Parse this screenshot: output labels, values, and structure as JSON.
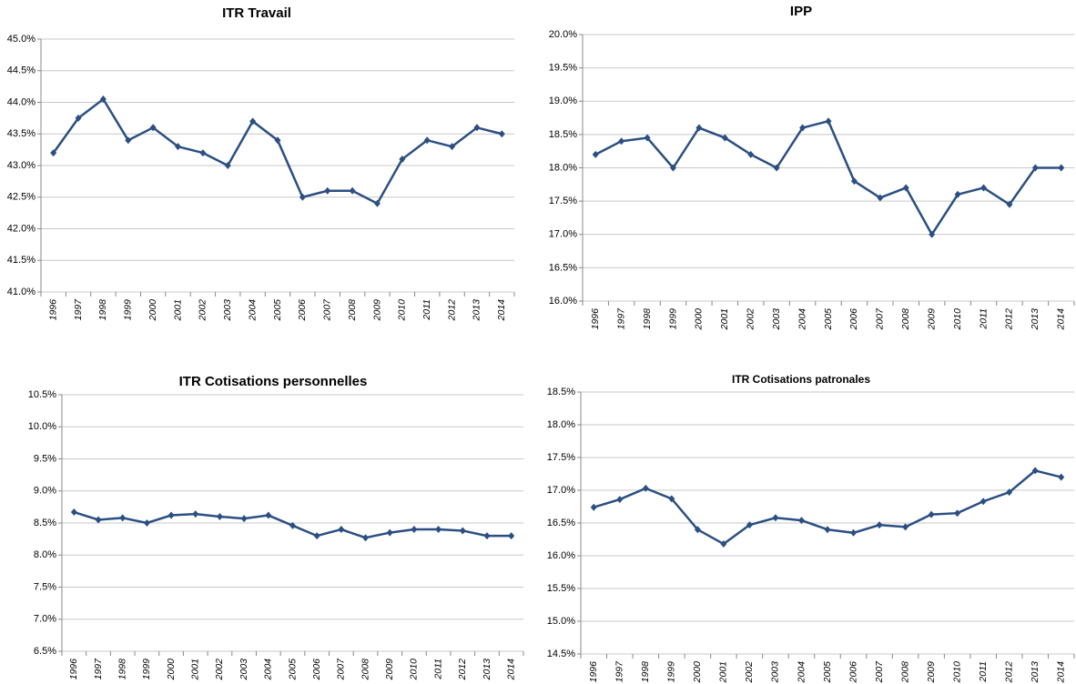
{
  "chart_data": [
    {
      "type": "line",
      "title": "ITR Travail",
      "color": "#2b4f82",
      "grid": true,
      "categories": [
        "1996",
        "1997",
        "1998",
        "1999",
        "2000",
        "2001",
        "2002",
        "2003",
        "2004",
        "2005",
        "2006",
        "2007",
        "2008",
        "2009",
        "2010",
        "2011",
        "2012",
        "2013",
        "2014"
      ],
      "values": [
        43.2,
        43.75,
        44.05,
        43.4,
        43.6,
        43.3,
        43.2,
        43.0,
        43.7,
        43.4,
        42.5,
        42.6,
        42.6,
        42.4,
        43.1,
        43.4,
        43.3,
        43.6,
        43.5
      ],
      "ylim": [
        41,
        45
      ],
      "yticks": [
        {
          "value": 41,
          "label": "41.0%"
        },
        {
          "value": 41.5,
          "label": "41.5%"
        },
        {
          "value": 42,
          "label": "42.0%"
        },
        {
          "value": 42.5,
          "label": "42.5%"
        },
        {
          "value": 43,
          "label": "43.0%"
        },
        {
          "value": 43.5,
          "label": "43.5%"
        },
        {
          "value": 44,
          "label": "44.0%"
        },
        {
          "value": 44.5,
          "label": "44.5%"
        },
        {
          "value": 45,
          "label": "45.0%"
        }
      ]
    },
    {
      "type": "line",
      "title": "IPP",
      "color": "#2b4f82",
      "grid": true,
      "categories": [
        "1996",
        "1997",
        "1998",
        "1999",
        "2000",
        "2001",
        "2002",
        "2003",
        "2004",
        "2005",
        "2006",
        "2007",
        "2008",
        "2009",
        "2010",
        "2011",
        "2012",
        "2013",
        "2014"
      ],
      "values": [
        18.2,
        18.4,
        18.45,
        18.0,
        18.6,
        18.45,
        18.2,
        18.0,
        18.6,
        18.7,
        17.8,
        17.55,
        17.7,
        17.0,
        17.6,
        17.7,
        17.45,
        18.0,
        18.0
      ],
      "ylim": [
        16,
        20
      ],
      "yticks": [
        {
          "value": 16,
          "label": "16.0%"
        },
        {
          "value": 16.5,
          "label": "16.5%"
        },
        {
          "value": 17,
          "label": "17.0%"
        },
        {
          "value": 17.5,
          "label": "17.5%"
        },
        {
          "value": 18,
          "label": "18.0%"
        },
        {
          "value": 18.5,
          "label": "18.5%"
        },
        {
          "value": 19,
          "label": "19.0%"
        },
        {
          "value": 19.5,
          "label": "19.5%"
        },
        {
          "value": 20,
          "label": "20.0%"
        }
      ]
    },
    {
      "type": "line",
      "title": "ITR Cotisations personnelles",
      "color": "#2b4f82",
      "grid": true,
      "categories": [
        "1996",
        "1997",
        "1998",
        "1999",
        "2000",
        "2001",
        "2002",
        "2003",
        "2004",
        "2005",
        "2006",
        "2007",
        "2008",
        "2009",
        "2010",
        "2011",
        "2012",
        "2013",
        "2014"
      ],
      "values": [
        8.67,
        8.55,
        8.58,
        8.5,
        8.62,
        8.64,
        8.6,
        8.57,
        8.62,
        8.46,
        8.3,
        8.4,
        8.27,
        8.35,
        8.4,
        8.4,
        8.38,
        8.3,
        8.3
      ],
      "ylim": [
        6.5,
        10.5
      ],
      "yticks": [
        {
          "value": 6.5,
          "label": "6.5%"
        },
        {
          "value": 7,
          "label": "7.0%"
        },
        {
          "value": 7.5,
          "label": "7.5%"
        },
        {
          "value": 8,
          "label": "8.0%"
        },
        {
          "value": 8.5,
          "label": "8.5%"
        },
        {
          "value": 9,
          "label": "9.0%"
        },
        {
          "value": 9.5,
          "label": "9.5%"
        },
        {
          "value": 10,
          "label": "10.0%"
        },
        {
          "value": 10.5,
          "label": "10.5%"
        }
      ]
    },
    {
      "type": "line",
      "title": "ITR Cotisations patronales",
      "color": "#2b4f82",
      "grid": true,
      "categories": [
        "1996",
        "1997",
        "1998",
        "1999",
        "2000",
        "2001",
        "2002",
        "2003",
        "2004",
        "2005",
        "2006",
        "2007",
        "2008",
        "2009",
        "2010",
        "2011",
        "2012",
        "2013",
        "2014"
      ],
      "values": [
        16.74,
        16.86,
        17.03,
        16.87,
        16.4,
        16.18,
        16.47,
        16.58,
        16.54,
        16.4,
        16.35,
        16.47,
        16.44,
        16.63,
        16.65,
        16.83,
        16.97,
        17.3,
        17.2
      ],
      "ylim": [
        14.5,
        18.5
      ],
      "yticks": [
        {
          "value": 14.5,
          "label": "14.5%"
        },
        {
          "value": 15,
          "label": "15.0%"
        },
        {
          "value": 15.5,
          "label": "15.5%"
        },
        {
          "value": 16,
          "label": "16.0%"
        },
        {
          "value": 16.5,
          "label": "16.5%"
        },
        {
          "value": 17,
          "label": "17.0%"
        },
        {
          "value": 17.5,
          "label": "17.5%"
        },
        {
          "value": 18,
          "label": "18.0%"
        },
        {
          "value": 18.5,
          "label": "18.5%"
        }
      ]
    }
  ]
}
